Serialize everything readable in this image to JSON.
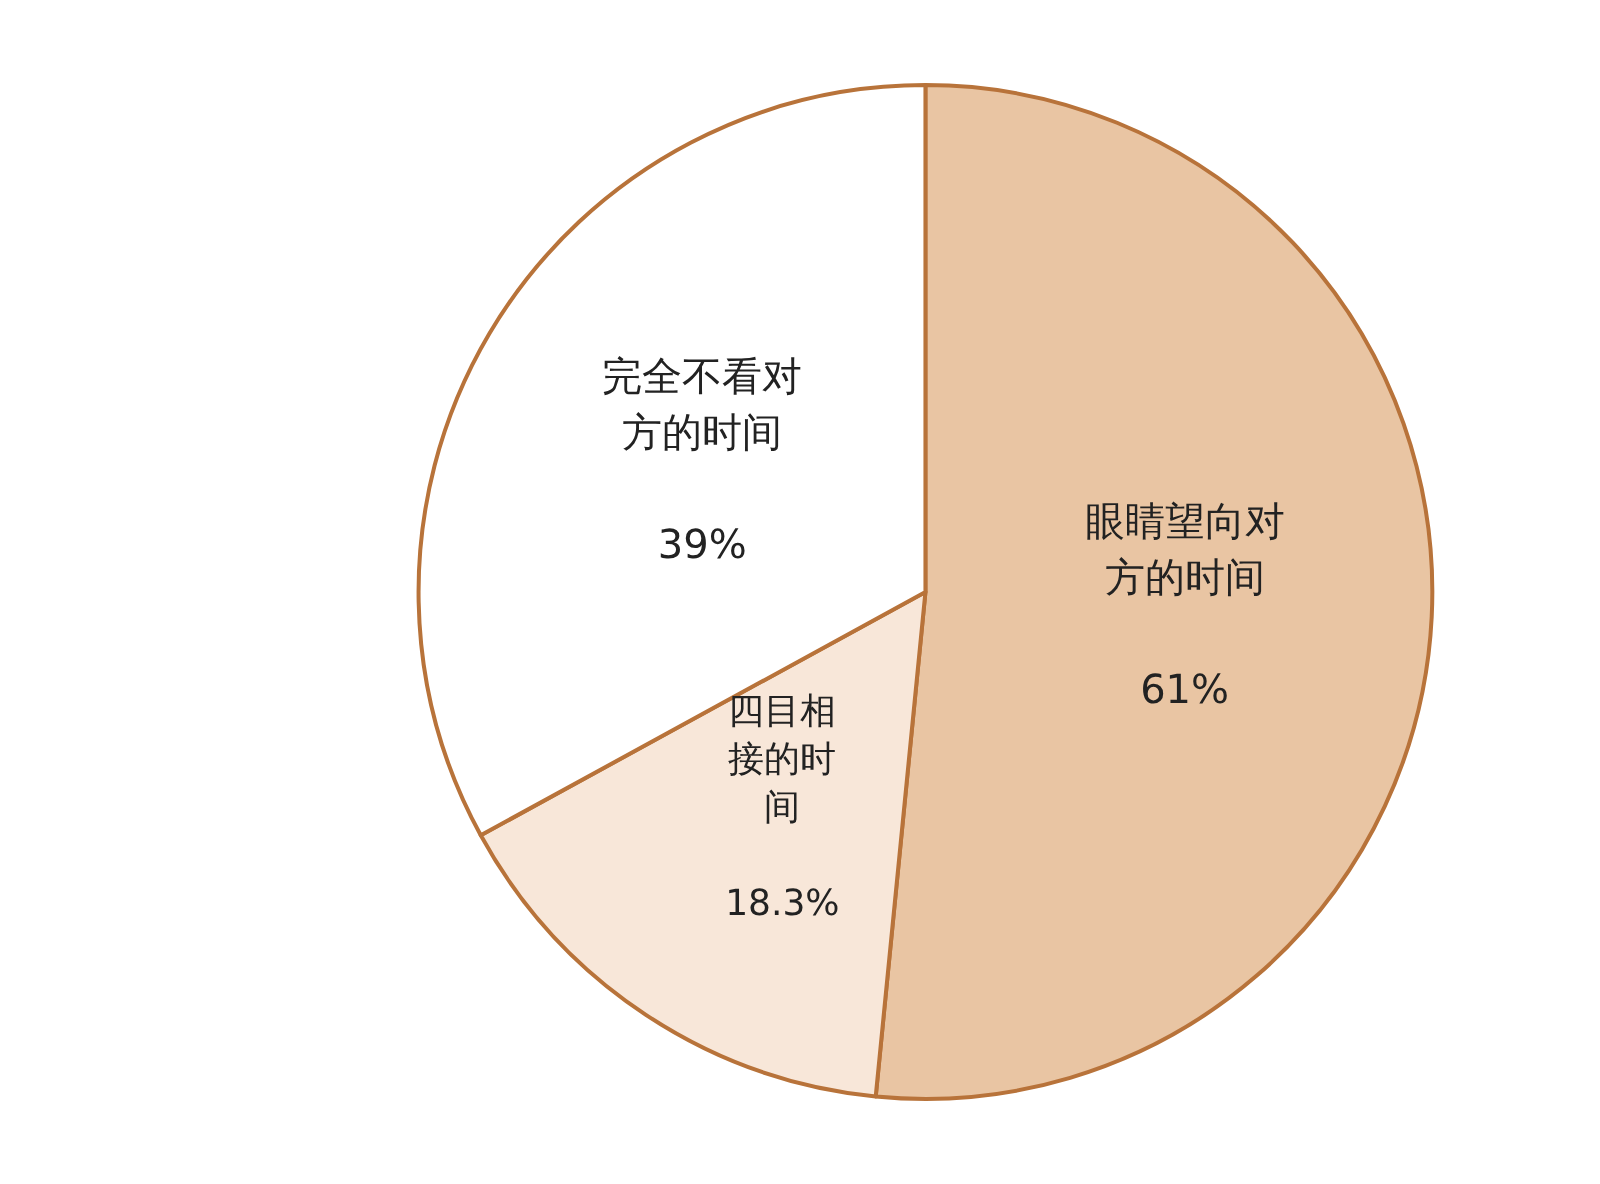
{
  "chart_data": {
    "type": "pie",
    "categories": [
      "眼睛望向对方的时间",
      "四目相接的时间",
      "完全不看对方的时间"
    ],
    "values": [
      61,
      18.3,
      39
    ],
    "colors": [
      "#e9c5a3",
      "#f8e7d9",
      "#ffffff"
    ],
    "value_labels": [
      "61%",
      "18.3%",
      "39%"
    ],
    "legend": false
  }
}
